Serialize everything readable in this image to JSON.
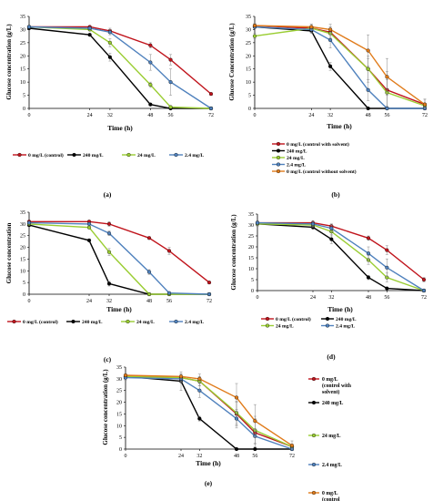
{
  "colors": {
    "red": "#c0141c",
    "black": "#000000",
    "green": "#9acd32",
    "blue": "#4f81bd",
    "orange": "#e07b1a"
  },
  "chart_data": [
    {
      "panel": "(a)",
      "type": "line",
      "xlabel": "Time (h)",
      "ylabel": "Glucose concentration (g/L)",
      "x": [
        0,
        24,
        32,
        48,
        56,
        72
      ],
      "xlim": [
        0,
        72
      ],
      "ylim": [
        0,
        35
      ],
      "yticks": [
        0,
        5,
        10,
        15,
        20,
        25,
        30,
        35
      ],
      "legend_placement": "bottom",
      "series": [
        {
          "name": "0 mg/L (control)",
          "color": "red",
          "values": [
            31,
            31,
            29.5,
            24,
            18.5,
            5.5
          ],
          "errors": [
            0.5,
            0.5,
            1,
            1,
            2,
            0.5
          ]
        },
        {
          "name": "240 mg/L",
          "color": "black",
          "values": [
            30.5,
            28,
            19.5,
            1.5,
            0,
            0
          ],
          "errors": [
            0.5,
            0.5,
            1.5,
            0.5,
            0,
            0
          ]
        },
        {
          "name": "24 mg/L",
          "color": "green",
          "values": [
            31,
            30,
            25,
            9,
            0.5,
            0
          ],
          "errors": [
            0.5,
            0.5,
            1.5,
            1,
            0.5,
            0
          ]
        },
        {
          "name": "2.4 mg/L",
          "color": "blue",
          "values": [
            31,
            30.5,
            29,
            17.5,
            10,
            0
          ],
          "errors": [
            0.5,
            0.5,
            1,
            3,
            5,
            0
          ]
        }
      ]
    },
    {
      "panel": "(b)",
      "type": "line",
      "xlabel": "Time (h)",
      "ylabel": "Glucose Concentration (g/L)",
      "x": [
        0,
        24,
        32,
        48,
        56,
        72
      ],
      "xlim": [
        0,
        72
      ],
      "ylim": [
        0,
        35
      ],
      "yticks": [
        0,
        5,
        10,
        15,
        20,
        25,
        30,
        35
      ],
      "legend_placement": "bottom",
      "series": [
        {
          "name": "0 mg/L (control with solvent)",
          "color": "red",
          "values": [
            31.5,
            30.5,
            29,
            15,
            7,
            1.5
          ],
          "errors": [
            1,
            1.5,
            2,
            5,
            7,
            2
          ]
        },
        {
          "name": "240  mg/L",
          "color": "black",
          "values": [
            31,
            29.5,
            16,
            0,
            0,
            0
          ],
          "errors": [
            0.5,
            1,
            1.5,
            0,
            0,
            0
          ]
        },
        {
          "name": "24 mg/L",
          "color": "green",
          "values": [
            27.5,
            30.5,
            28.5,
            15,
            6,
            1
          ],
          "errors": [
            1,
            1,
            2,
            4,
            5,
            1
          ]
        },
        {
          "name": "2.4  mg/L",
          "color": "blue",
          "values": [
            31,
            30,
            26,
            7,
            0,
            0
          ],
          "errors": [
            0.5,
            1,
            3,
            4,
            0,
            0
          ]
        },
        {
          "name": "0 mg/L (control without solvent)",
          "color": "orange",
          "values": [
            31.5,
            31,
            30,
            22,
            12,
            1.5
          ],
          "errors": [
            0.5,
            1,
            2,
            6,
            7,
            2
          ]
        }
      ]
    },
    {
      "panel": "(c)",
      "type": "line",
      "xlabel": "Time (h)",
      "ylabel": "Glucose concentration",
      "x": [
        0,
        24,
        32,
        48,
        56,
        72
      ],
      "xlim": [
        0,
        72
      ],
      "ylim": [
        0,
        35
      ],
      "yticks": [
        0,
        5,
        10,
        15,
        20,
        25,
        30,
        35
      ],
      "legend_placement": "bottom",
      "series": [
        {
          "name": "0 mg/L (control)",
          "color": "red",
          "values": [
            31,
            31,
            30,
            24,
            18.5,
            5
          ],
          "errors": [
            0.5,
            0.5,
            1,
            0.5,
            1.5,
            0.5
          ]
        },
        {
          "name": "240 mg/L",
          "color": "black",
          "values": [
            29.5,
            23,
            4.5,
            0,
            0,
            0
          ],
          "errors": [
            0.5,
            0.5,
            1,
            0,
            0,
            0
          ]
        },
        {
          "name": "24 mg/L",
          "color": "green",
          "values": [
            30,
            28.5,
            18,
            0,
            0,
            0
          ],
          "errors": [
            0.5,
            0.5,
            1.5,
            0,
            0,
            0
          ]
        },
        {
          "name": "2.4 mg/L",
          "color": "blue",
          "values": [
            30.5,
            30,
            26,
            9.5,
            0.5,
            0
          ],
          "errors": [
            0.5,
            0.5,
            1,
            1,
            0.5,
            0
          ]
        }
      ]
    },
    {
      "panel": "(d)",
      "type": "line",
      "xlabel": "Time (h)",
      "ylabel": "Glucose concentration (g/L)",
      "x": [
        0,
        24,
        32,
        48,
        56,
        72
      ],
      "xlim": [
        0,
        72
      ],
      "ylim": [
        0,
        35
      ],
      "yticks": [
        0,
        5,
        10,
        15,
        20,
        25,
        30,
        35
      ],
      "legend_placement": "bottom",
      "series": [
        {
          "name": "0 mg/L (control)",
          "color": "red",
          "values": [
            31,
            31,
            29.5,
            24,
            18.5,
            5
          ],
          "errors": [
            1,
            1,
            1,
            1,
            2,
            1
          ]
        },
        {
          "name": "240 mg/L",
          "color": "black",
          "values": [
            30.5,
            29,
            23.5,
            6,
            1,
            0
          ],
          "errors": [
            1,
            1,
            2,
            1,
            0.5,
            0
          ]
        },
        {
          "name": "24 mg/L",
          "color": "green",
          "values": [
            30.5,
            30,
            27,
            14,
            6,
            0
          ],
          "errors": [
            1,
            1,
            2,
            2,
            2,
            0
          ]
        },
        {
          "name": "2.4 mg/L",
          "color": "blue",
          "values": [
            31,
            30.5,
            28.5,
            17,
            10.5,
            0
          ],
          "errors": [
            1,
            1,
            1.5,
            3,
            4,
            0
          ]
        }
      ]
    },
    {
      "panel": "(e)",
      "type": "line",
      "xlabel": "Time (h)",
      "ylabel": "Glucose concentration (g/L)",
      "x": [
        0,
        24,
        32,
        48,
        56,
        72
      ],
      "xlim": [
        0,
        72
      ],
      "ylim": [
        0,
        35
      ],
      "yticks": [
        0,
        5,
        10,
        15,
        20,
        25,
        30,
        35
      ],
      "legend_placement": "right",
      "series": [
        {
          "name": "0 mg/L (control with solvent)",
          "color": "red",
          "values": [
            31,
            30.5,
            29,
            15,
            7,
            1
          ],
          "errors": [
            1,
            1.5,
            2,
            5,
            6,
            1
          ]
        },
        {
          "name": "240 mg/L",
          "color": "black",
          "values": [
            31,
            29,
            13,
            0,
            0,
            0
          ],
          "errors": [
            0.5,
            4,
            1,
            0,
            0,
            0
          ]
        },
        {
          "name": "24 mg/L",
          "color": "green",
          "values": [
            31,
            30.5,
            29,
            15.5,
            8,
            1
          ],
          "errors": [
            1,
            1.5,
            2,
            5,
            6,
            1
          ]
        },
        {
          "name": "2.4 mg/L",
          "color": "blue",
          "values": [
            30.5,
            30,
            25,
            13,
            5.5,
            0
          ],
          "errors": [
            1,
            1.5,
            3,
            4,
            3,
            0
          ]
        },
        {
          "name": "0 mg/L (control without solvent)",
          "color": "orange",
          "values": [
            31.5,
            31,
            30,
            22,
            12,
            1.5
          ],
          "errors": [
            0.5,
            1,
            2,
            6,
            7,
            2
          ]
        }
      ]
    }
  ]
}
